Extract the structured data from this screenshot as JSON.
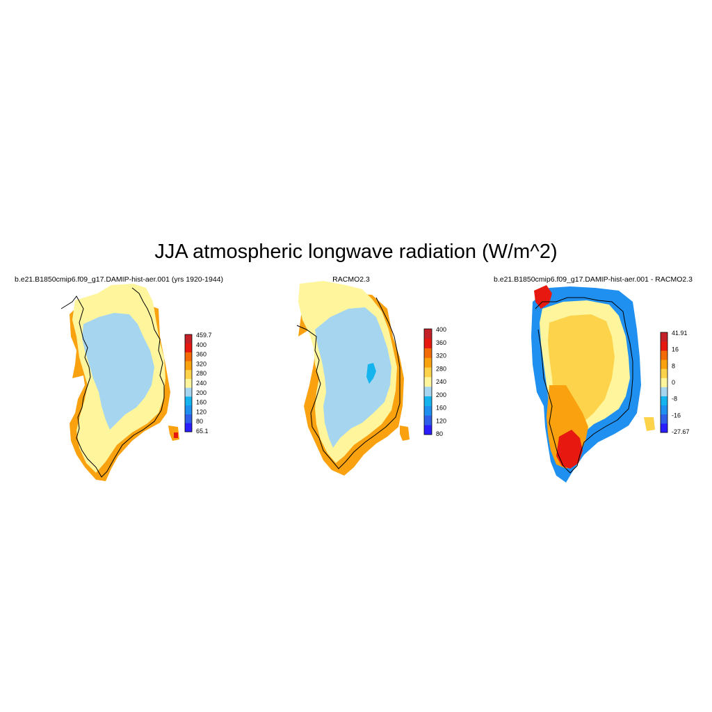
{
  "title": "JJA atmospheric longwave radiation (W/m^2)",
  "panels": [
    {
      "title": "b.e21.B1850cmip6.f09_g17.DAMIP-hist-aer.001 (yrs 1920-1944)",
      "colorbar": {
        "colors": [
          "#2a1eff",
          "#2f5fe8",
          "#1f8ff0",
          "#16b4ee",
          "#a6d6ef",
          "#fff59c",
          "#fcd34a",
          "#f9a10f",
          "#f26b07",
          "#e6180f",
          "#c42028"
        ],
        "labels": [
          "65.1",
          "80",
          "120",
          "160",
          "200",
          "240",
          "280",
          "320",
          "360",
          "400",
          "459.7"
        ]
      }
    },
    {
      "title": "RACMO2.3",
      "colorbar": {
        "colors": [
          "#2a1eff",
          "#2f5fe8",
          "#1f8ff0",
          "#16b4ee",
          "#a6d6ef",
          "#fff59c",
          "#fcd34a",
          "#f9a10f",
          "#f26b07",
          "#e6180f",
          "#c42028"
        ],
        "labels": [
          "80",
          "120",
          "160",
          "200",
          "240",
          "280",
          "320",
          "360",
          "400"
        ]
      }
    },
    {
      "title": "b.e21.B1850cmip6.f09_g17.DAMIP-hist-aer.001 - RACMO2.3",
      "colorbar": {
        "colors": [
          "#2a1eff",
          "#2f5fe8",
          "#1f8ff0",
          "#16b4ee",
          "#a6d6ef",
          "#fff59c",
          "#fcd34a",
          "#f9a10f",
          "#f26b07",
          "#e6180f",
          "#c42028"
        ],
        "labels": [
          "-27.67",
          "-16",
          "-8",
          "0",
          "8",
          "16",
          "41.91"
        ]
      }
    }
  ]
}
